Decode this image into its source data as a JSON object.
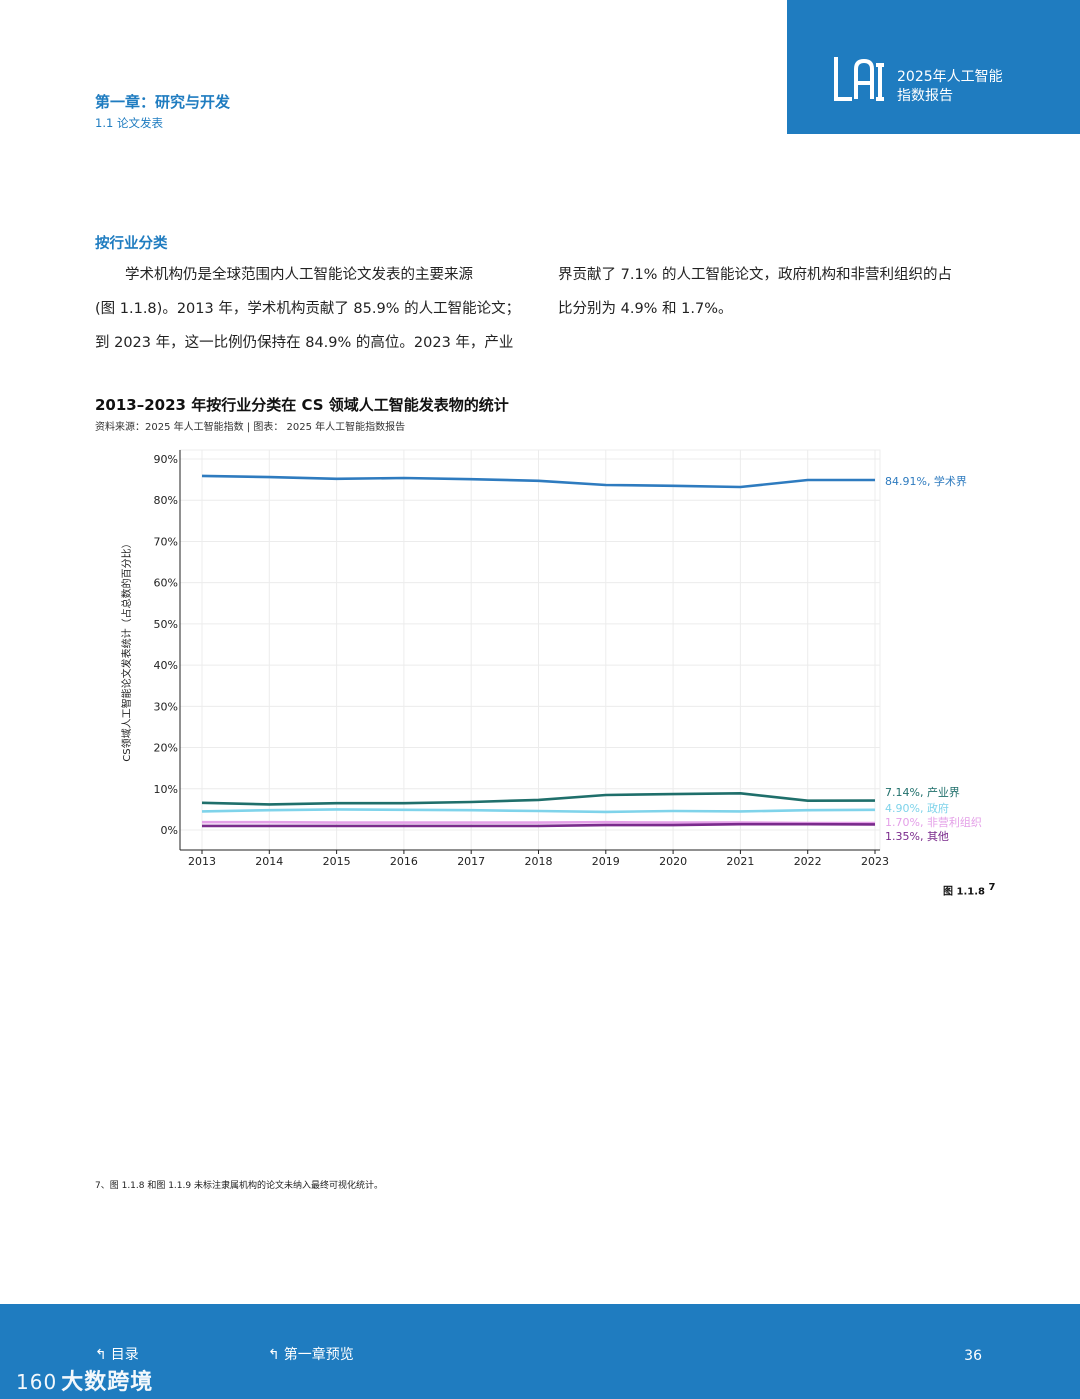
{
  "header": {
    "badge_title_line1": "2025年人工智能",
    "badge_title_line2": "指数报告",
    "logo_text": "AI",
    "chapter": "第一章：研究与开发",
    "section": "1.1 论文发表"
  },
  "content": {
    "heading": "按行业分类",
    "para_left_line1": "学术机构仍是全球范围内人工智能论文发表的主要来源",
    "para_left_line2": "(图 1.1.8)。2013 年，学术机构贡献了 85.9% 的人工智能论文；",
    "para_left_line3": "到 2023 年，这一比例仍保持在 84.9% 的高位。2023 年，产业",
    "para_right_line1": "界贡献了 7.1% 的人工智能论文，政府机构和非营利组织的占",
    "para_right_line2": "比分别为 4.9% 和 1.7%。"
  },
  "chart_data": {
    "type": "line",
    "title": "2013–2023 年按行业分类在 CS 领域人工智能发表物的统计",
    "source": "资料来源：2025 年人工智能指数 | 图表： 2025 年人工智能指数报告",
    "ylabel": "CS领域人工智能论文发表统计（占总数的百分比）",
    "xlabel": "",
    "ylim": [
      0,
      90
    ],
    "yticks": [
      "0%",
      "10%",
      "20%",
      "30%",
      "40%",
      "50%",
      "60%",
      "70%",
      "80%",
      "90%"
    ],
    "categories": [
      "2013",
      "2014",
      "2015",
      "2016",
      "2017",
      "2018",
      "2019",
      "2020",
      "2021",
      "2022",
      "2023"
    ],
    "series": [
      {
        "name": "学术界",
        "label": "84.91%, 学术界",
        "color": "#2e7bbf",
        "values": [
          85.9,
          85.6,
          85.2,
          85.4,
          85.1,
          84.7,
          83.7,
          83.5,
          83.2,
          84.9,
          84.91
        ]
      },
      {
        "name": "产业界",
        "label": "7.14%, 产业界",
        "color": "#1f6f6b",
        "values": [
          6.6,
          6.2,
          6.5,
          6.5,
          6.8,
          7.3,
          8.5,
          8.7,
          8.9,
          7.1,
          7.14
        ]
      },
      {
        "name": "政府",
        "label": "4.90%, 政府",
        "color": "#7fd3ea",
        "values": [
          4.5,
          4.8,
          5.0,
          4.9,
          4.8,
          4.6,
          4.4,
          4.6,
          4.5,
          4.8,
          4.9
        ]
      },
      {
        "name": "非营利组织",
        "label": "1.70%, 非营利组织",
        "color": "#e4a0e8",
        "values": [
          1.9,
          1.9,
          1.8,
          1.8,
          1.8,
          1.8,
          1.9,
          1.8,
          1.8,
          1.7,
          1.7
        ]
      },
      {
        "name": "其他",
        "label": "1.35%, 其他",
        "color": "#7a2a8c",
        "values": [
          1.0,
          1.0,
          1.0,
          1.0,
          1.0,
          1.0,
          1.2,
          1.2,
          1.4,
          1.4,
          1.35
        ]
      }
    ],
    "grid": true
  },
  "figure": {
    "label": "图 1.1.8",
    "note_ref": "7"
  },
  "footnote": "7、图 1.1.8 和图 1.1.9 未标注隶属机构的论文未纳入最终可视化统计。",
  "footer": {
    "toc_label": "目录",
    "chapter_preview_label": "第一章预览",
    "page_number": "36",
    "watermark": "大数跨境",
    "watermark_mark": "160"
  },
  "colors": {
    "brand": "#1f7cc0"
  }
}
